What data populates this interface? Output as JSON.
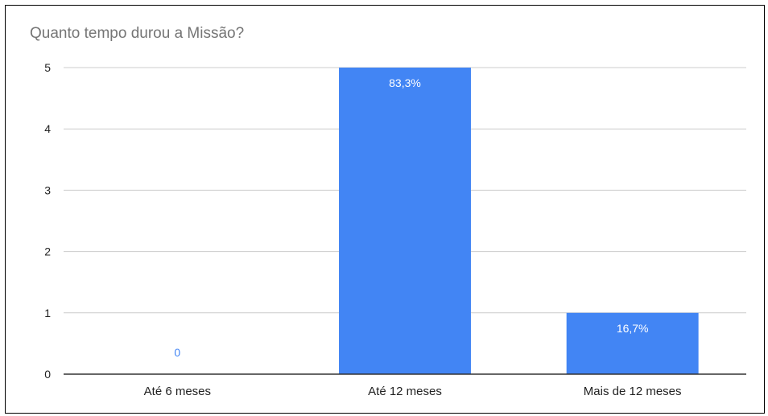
{
  "chart_data": {
    "type": "bar",
    "title": "Quanto tempo durou a Missão?",
    "xlabel": "",
    "ylabel": "",
    "categories": [
      "Até 6 meses",
      "Até 12 meses",
      "Mais de 12 meses"
    ],
    "values": [
      0,
      5,
      1
    ],
    "data_labels": [
      "0",
      "83,3%",
      "16,7%"
    ],
    "ylim": [
      0,
      5
    ],
    "yticks": [
      "0",
      "1",
      "2",
      "3",
      "4",
      "5"
    ],
    "grid": true,
    "legend": "none",
    "colors": {
      "bar": "#4285f4",
      "label_inside": "#ffffff",
      "label_outside": "#4285f4",
      "grid": "#cccccc",
      "axis": "#333333",
      "title": "#757575"
    }
  }
}
